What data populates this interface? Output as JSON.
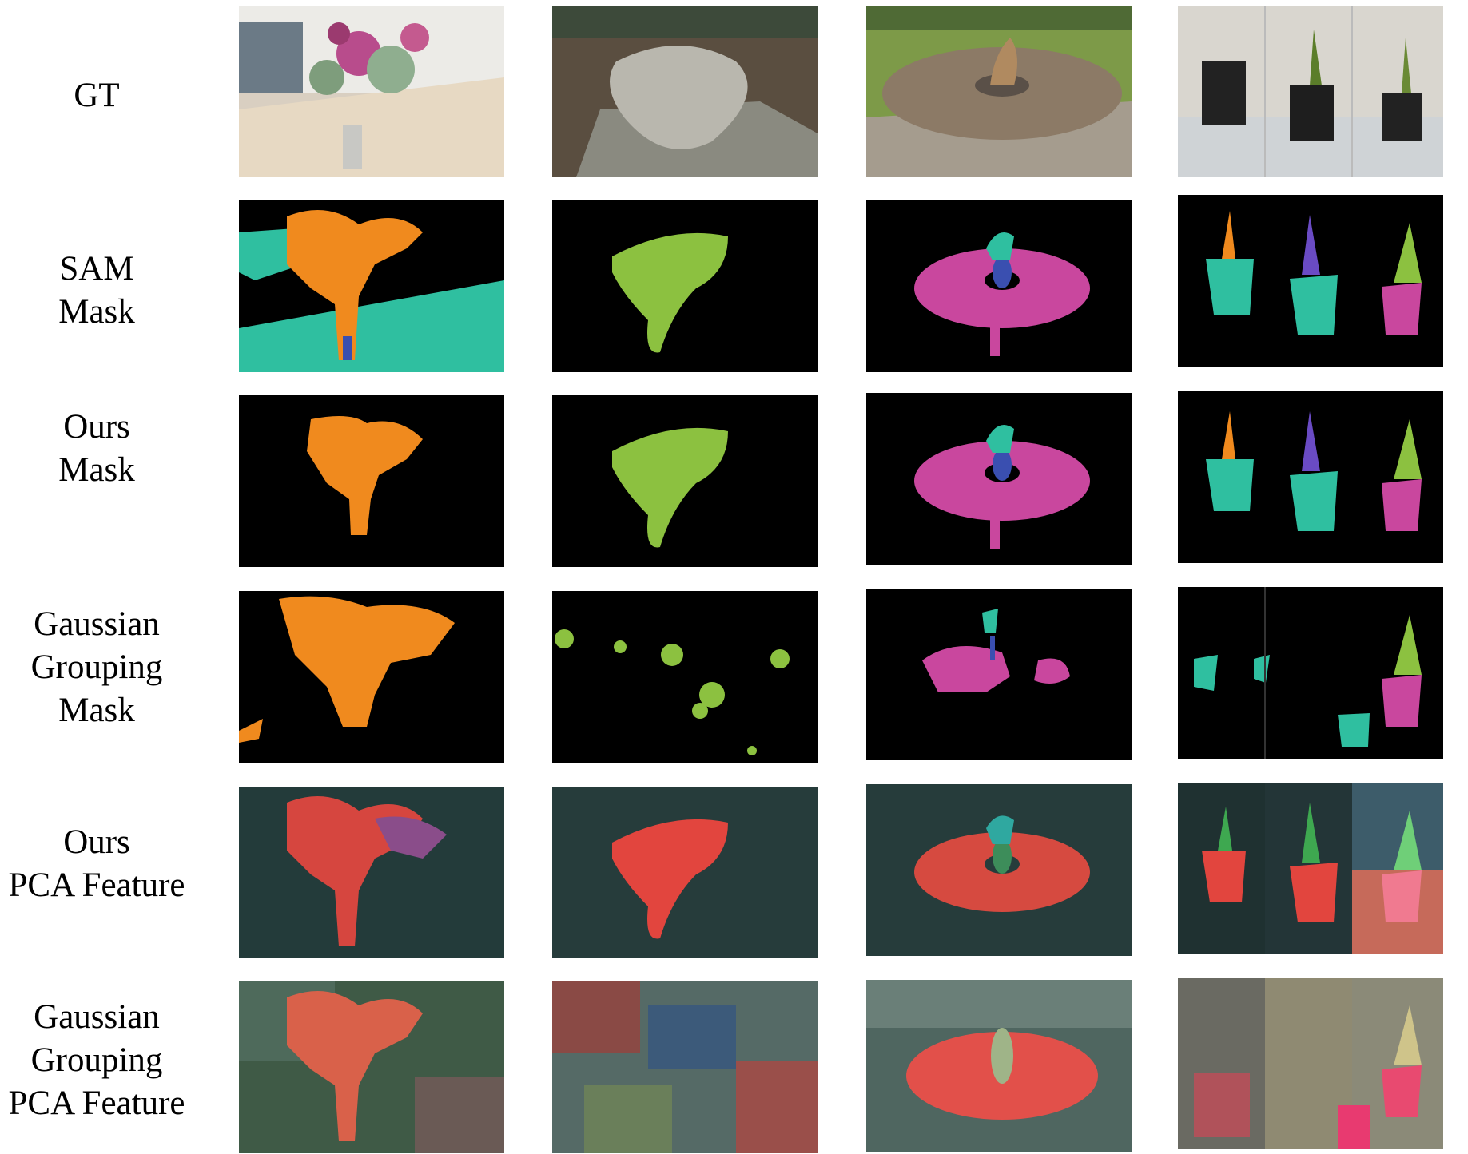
{
  "rows": [
    {
      "id": "gt",
      "label_lines": [
        "GT"
      ]
    },
    {
      "id": "sam-mask",
      "label_lines": [
        "SAM",
        "Mask"
      ]
    },
    {
      "id": "ours-mask",
      "label_lines": [
        "Ours",
        "Mask"
      ]
    },
    {
      "id": "gg-mask",
      "label_lines": [
        "Gaussian",
        "Grouping",
        "Mask"
      ]
    },
    {
      "id": "ours-pca",
      "label_lines": [
        "Ours",
        "PCA Feature"
      ]
    },
    {
      "id": "gg-pca",
      "label_lines": [
        "Gaussian",
        "Grouping",
        "PCA Feature"
      ]
    }
  ],
  "scenes": [
    "flower-vase",
    "stone-sculpture",
    "round-table",
    "potted-plants"
  ],
  "colors": {
    "orange": "#f08a1e",
    "green": "#8cc140",
    "teal": "#2fbfa0",
    "magenta": "#c9479e",
    "blue": "#3a4fb0",
    "purple": "#6a4bc4",
    "pca_bg": "#233b3a",
    "pca_red": "#e2453e"
  }
}
